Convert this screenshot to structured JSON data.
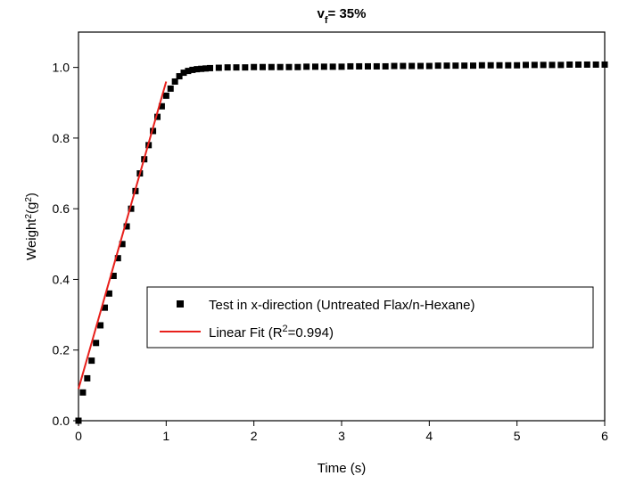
{
  "chart_data": {
    "type": "scatter",
    "title": [
      "v",
      "f",
      "= 35%"
    ],
    "x_label": "Time (s)",
    "y_label": [
      "Weight",
      "2",
      "(g",
      "2",
      ")"
    ],
    "xlim": [
      0,
      6
    ],
    "ylim": [
      0,
      1.1
    ],
    "xticks": [
      0,
      1,
      2,
      3,
      4,
      5,
      6
    ],
    "yticks": [
      {
        "value": 0,
        "label": "0.0"
      },
      0.2,
      0.4,
      0.6,
      0.8,
      {
        "value": 1,
        "label": "1.0"
      }
    ],
    "series": [
      {
        "name": [
          "Test in x-direction (Untreated Flax/n-Hexane)"
        ],
        "type": "scatter",
        "color": "#000000",
        "x": [
          0,
          0.05,
          0.1,
          0.15,
          0.2,
          0.25,
          0.3,
          0.35,
          0.4,
          0.45,
          0.5,
          0.55,
          0.6,
          0.65,
          0.7,
          0.75,
          0.8,
          0.85,
          0.9,
          0.95,
          1.0,
          1.05,
          1.1,
          1.15,
          1.2,
          1.25,
          1.3,
          1.35,
          1.4,
          1.45,
          1.5,
          1.6,
          1.7,
          1.8,
          1.9,
          2.0,
          2.1,
          2.2,
          2.3,
          2.4,
          2.5,
          2.6,
          2.7,
          2.8,
          2.9,
          3.0,
          3.1,
          3.2,
          3.3,
          3.4,
          3.5,
          3.6,
          3.7,
          3.8,
          3.9,
          4.0,
          4.1,
          4.2,
          4.3,
          4.4,
          4.5,
          4.6,
          4.7,
          4.8,
          4.9,
          5.0,
          5.1,
          5.2,
          5.3,
          5.4,
          5.5,
          5.6,
          5.7,
          5.8,
          5.9,
          6.0
        ],
        "values": [
          0,
          0.08,
          0.12,
          0.17,
          0.22,
          0.27,
          0.32,
          0.36,
          0.41,
          0.46,
          0.5,
          0.55,
          0.6,
          0.65,
          0.7,
          0.74,
          0.78,
          0.82,
          0.86,
          0.89,
          0.92,
          0.94,
          0.96,
          0.975,
          0.985,
          0.99,
          0.993,
          0.995,
          0.996,
          0.997,
          0.998,
          0.999,
          1.0,
          1.0,
          1.0,
          1.001,
          1.001,
          1.001,
          1.001,
          1.001,
          1.001,
          1.002,
          1.002,
          1.002,
          1.002,
          1.002,
          1.003,
          1.003,
          1.003,
          1.003,
          1.003,
          1.004,
          1.004,
          1.004,
          1.004,
          1.004,
          1.005,
          1.005,
          1.005,
          1.005,
          1.005,
          1.006,
          1.006,
          1.006,
          1.006,
          1.006,
          1.007,
          1.007,
          1.007,
          1.007,
          1.007,
          1.008,
          1.008,
          1.008,
          1.008,
          1.008
        ]
      },
      {
        "name": [
          "Linear Fit (R",
          "2",
          "=0.994)"
        ],
        "type": "line",
        "color": "#e8201c",
        "x": [
          0,
          1
        ],
        "values": [
          0.09,
          0.96
        ]
      }
    ]
  }
}
